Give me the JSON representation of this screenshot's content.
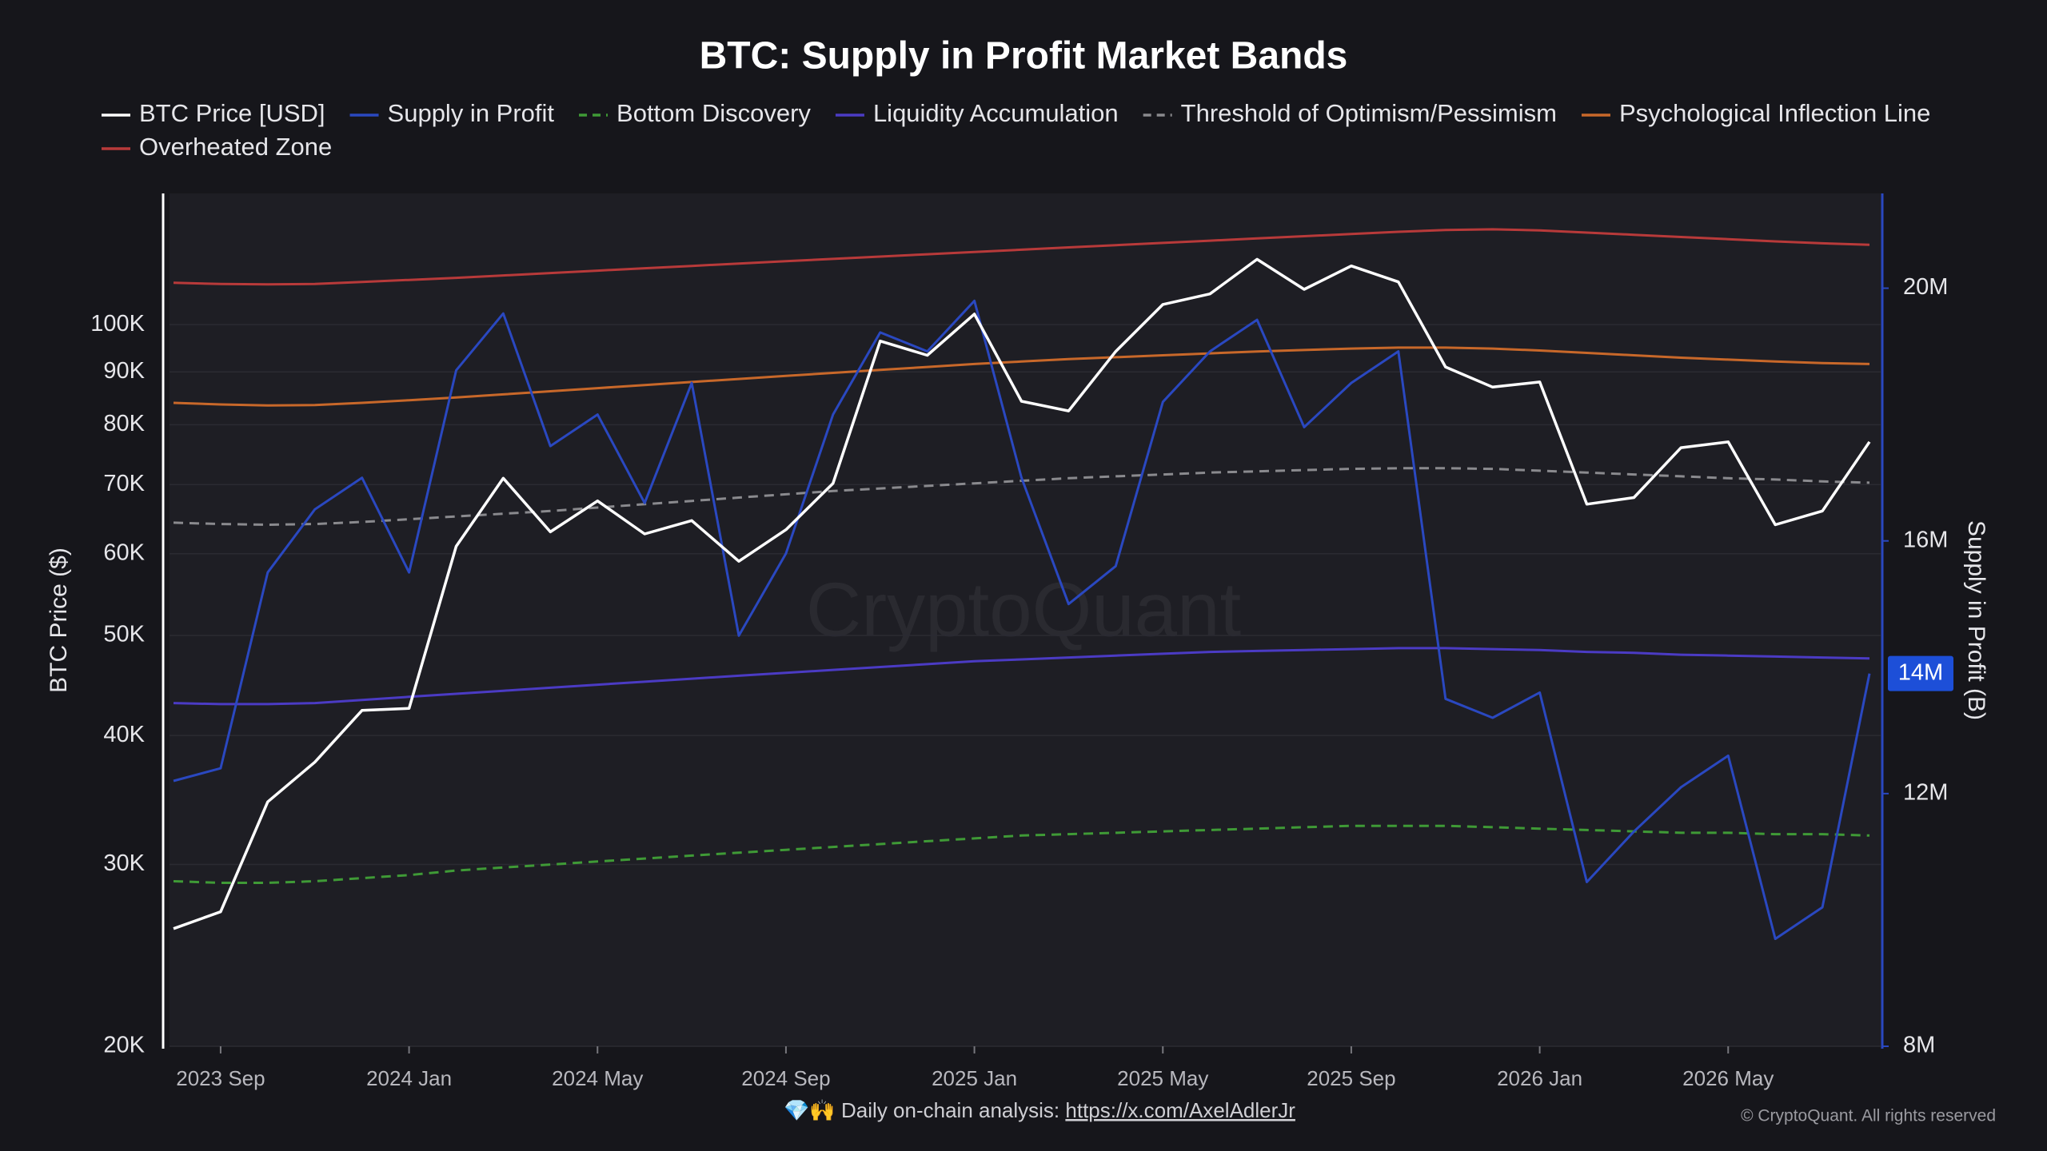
{
  "chart_data": {
    "type": "line",
    "title": "BTC: Supply in Profit Market Bands",
    "y_label": "BTC Price ($)",
    "y2_label": "Supply in Profit (B)",
    "watermark": "CryptoQuant",
    "footer": {
      "text": "💎🙌 Daily on-chain analysis: ",
      "link": "https://x.com/AxelAdlerJr",
      "copyright": "© CryptoQuant. All rights reserved"
    },
    "x": [
      "2023-08",
      "2023-09",
      "2023-10",
      "2023-11",
      "2023-12",
      "2024-01",
      "2024-02",
      "2024-03",
      "2024-04",
      "2024-05",
      "2024-06",
      "2024-07",
      "2024-08",
      "2024-09",
      "2024-10",
      "2024-11",
      "2024-12",
      "2025-01",
      "2025-02",
      "2025-03",
      "2025-04",
      "2025-05",
      "2025-06",
      "2025-07",
      "2025-08",
      "2025-09",
      "2025-10",
      "2025-11",
      "2025-12",
      "2026-01",
      "2026-02",
      "2026-03",
      "2026-04",
      "2026-05",
      "2026-06",
      "2026-07",
      "2026-08"
    ],
    "xlim": [
      "2023-08",
      "2026-08"
    ],
    "xticks": [
      {
        "value": "2023-09",
        "label": "2023 Sep"
      },
      {
        "value": "2024-01",
        "label": "2024 Jan"
      },
      {
        "value": "2024-05",
        "label": "2024 May"
      },
      {
        "value": "2024-09",
        "label": "2024 Sep"
      },
      {
        "value": "2025-01",
        "label": "2025 Jan"
      },
      {
        "value": "2025-05",
        "label": "2025 May"
      },
      {
        "value": "2025-09",
        "label": "2025 Sep"
      },
      {
        "value": "2026-01",
        "label": "2026 Jan"
      },
      {
        "value": "2026-05",
        "label": "2026 May"
      }
    ],
    "ylim": [
      20000,
      134000
    ],
    "log_y": true,
    "grid": true,
    "yticks": [
      {
        "value": 20000,
        "label": "20K"
      },
      {
        "value": 30000,
        "label": "30K"
      },
      {
        "value": 40000,
        "label": "40K"
      },
      {
        "value": 50000,
        "label": "50K"
      },
      {
        "value": 60000,
        "label": "60K"
      },
      {
        "value": 70000,
        "label": "70K"
      },
      {
        "value": 80000,
        "label": "80K"
      },
      {
        "value": 90000,
        "label": "90K"
      },
      {
        "value": 100000,
        "label": "100K"
      }
    ],
    "y2lim": [
      8,
      21.5
    ],
    "y2ticks": [
      {
        "value": 8,
        "label": "8M"
      },
      {
        "value": 12,
        "label": "12M"
      },
      {
        "value": 16,
        "label": "16M"
      },
      {
        "value": 20,
        "label": "20M"
      }
    ],
    "series": [
      {
        "name": "BTC Price [USD]",
        "color": "#ffffff",
        "values": [
          26000,
          27000,
          34500,
          37700,
          42300,
          42500,
          61000,
          71000,
          63000,
          67500,
          62700,
          64600,
          59000,
          63300,
          70200,
          96400,
          93400,
          102400,
          84300,
          82500,
          94200,
          104600,
          107100,
          115700,
          108200,
          114000,
          110000,
          91000,
          87000,
          88000,
          67000,
          68000,
          76000,
          77000,
          64000,
          66000,
          77000
        ]
      },
      {
        "name": "Supply in Profit",
        "color": "#2a48c0",
        "axis": "y2",
        "values": [
          12.2,
          12.4,
          15.5,
          16.5,
          17.0,
          15.5,
          18.7,
          19.6,
          17.5,
          18.0,
          16.6,
          18.5,
          14.5,
          15.8,
          18.0,
          19.3,
          19.0,
          19.8,
          17.0,
          15.0,
          15.6,
          18.2,
          19.0,
          19.5,
          17.8,
          18.5,
          19.0,
          13.5,
          13.2,
          13.6,
          10.6,
          11.4,
          12.1,
          12.6,
          9.7,
          10.2,
          13.9
        ],
        "value_labels": [
          null,
          null,
          null,
          null,
          null,
          null,
          null,
          null,
          null,
          null,
          null,
          null,
          null,
          null,
          null,
          null,
          null,
          null,
          null,
          null,
          null,
          null,
          null,
          null,
          null,
          null,
          null,
          null,
          null,
          null,
          null,
          null,
          null,
          null,
          null,
          null,
          "14M"
        ]
      },
      {
        "name": "Bottom Discovery",
        "color": "#3f9a36",
        "dash": true,
        "values": [
          28900,
          28800,
          28800,
          28900,
          29100,
          29300,
          29600,
          29800,
          30000,
          30200,
          30400,
          30600,
          30800,
          31000,
          31200,
          31400,
          31600,
          31800,
          32000,
          32100,
          32200,
          32300,
          32400,
          32500,
          32600,
          32700,
          32700,
          32700,
          32600,
          32500,
          32400,
          32300,
          32200,
          32200,
          32100,
          32100,
          32000
        ]
      },
      {
        "name": "Liquidity Accumulation",
        "color": "#4b3bc4",
        "values": [
          43000,
          42900,
          42900,
          43000,
          43300,
          43600,
          43900,
          44200,
          44500,
          44800,
          45100,
          45400,
          45700,
          46000,
          46300,
          46600,
          46900,
          47200,
          47400,
          47600,
          47800,
          48000,
          48200,
          48300,
          48400,
          48500,
          48600,
          48600,
          48500,
          48400,
          48200,
          48100,
          47900,
          47800,
          47700,
          47600,
          47500
        ]
      },
      {
        "name": "Threshold of Optimism/Pessimism",
        "color": "#8a8a8e",
        "dash": true,
        "values": [
          64300,
          64100,
          64000,
          64100,
          64400,
          64800,
          65200,
          65600,
          66000,
          66500,
          67000,
          67500,
          68000,
          68500,
          69000,
          69400,
          69800,
          70200,
          70600,
          71000,
          71300,
          71600,
          71900,
          72100,
          72300,
          72500,
          72600,
          72600,
          72500,
          72200,
          71900,
          71600,
          71300,
          71000,
          70800,
          70500,
          70300
        ]
      },
      {
        "name": "Psychological Inflection Line",
        "color": "#c8682a",
        "values": [
          84000,
          83700,
          83500,
          83600,
          84000,
          84500,
          85000,
          85600,
          86200,
          86800,
          87400,
          88000,
          88600,
          89200,
          89800,
          90400,
          91000,
          91600,
          92100,
          92600,
          93000,
          93400,
          93800,
          94200,
          94500,
          94800,
          95000,
          95000,
          94800,
          94400,
          93900,
          93400,
          92900,
          92500,
          92100,
          91800,
          91600
        ]
      },
      {
        "name": "Overheated Zone",
        "color": "#b83a3a",
        "values": [
          109800,
          109500,
          109400,
          109500,
          110000,
          110500,
          111000,
          111600,
          112200,
          112800,
          113400,
          114000,
          114600,
          115200,
          115800,
          116400,
          117000,
          117600,
          118200,
          118800,
          119400,
          120000,
          120600,
          121200,
          121800,
          122400,
          123000,
          123500,
          123700,
          123400,
          122800,
          122200,
          121600,
          121000,
          120400,
          119900,
          119500
        ]
      }
    ]
  }
}
